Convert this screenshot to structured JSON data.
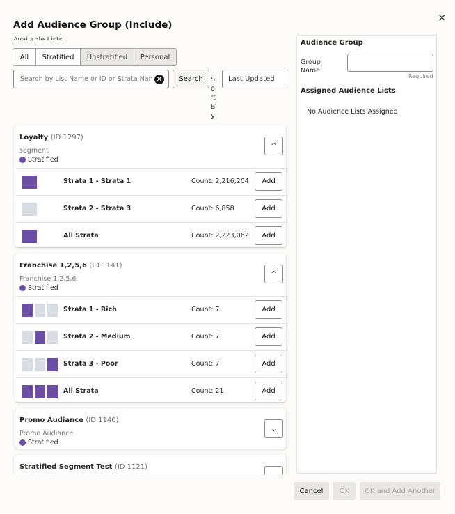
{
  "dialog": {
    "title": "Add Audience Group (Include)",
    "close_glyph": "×"
  },
  "left": {
    "available_label": "Available Lists",
    "tabs": [
      {
        "label": "All",
        "selected": true
      },
      {
        "label": "Stratified",
        "selected": true
      },
      {
        "label": "Unstratified",
        "selected": false
      },
      {
        "label": "Personal",
        "selected": false
      }
    ],
    "search": {
      "placeholder": "Search by List Name or ID or Strata Name",
      "clear_glyph": "✕",
      "button_label": "Search"
    },
    "sort": {
      "label": "Sort By",
      "value": "Last Updated"
    }
  },
  "cards": [
    {
      "name": "Loyalty",
      "id": "(ID 1297)",
      "sub": "segment",
      "type": "Stratified",
      "toggle": "^",
      "rows": [
        {
          "label": "Strata 1 - Strata 1",
          "count": "Count: 2,216,204",
          "add": "Add"
        },
        {
          "label": "Strata 2 - Strata 3",
          "count": "Count: 6,858",
          "add": "Add"
        },
        {
          "label": "All Strata",
          "count": "Count: 2,223,062",
          "add": "Add"
        }
      ]
    },
    {
      "name": "Franchise 1,2,5,6",
      "id": "(ID 1141)",
      "sub": "Franchise 1,2,5,6",
      "type": "Stratified",
      "toggle": "^",
      "rows": [
        {
          "label": "Strata 1 - Rich",
          "count": "Count: 7",
          "add": "Add"
        },
        {
          "label": "Strata 2 - Medium",
          "count": "Count: 7",
          "add": "Add"
        },
        {
          "label": "Strata 3 - Poor",
          "count": "Count: 7",
          "add": "Add"
        },
        {
          "label": "All Strata",
          "count": "Count: 21",
          "add": "Add"
        }
      ]
    },
    {
      "name": "Promo Audiance",
      "id": "(ID 1140)",
      "sub": "Promo Audiance",
      "type": "Stratified",
      "toggle": "⌄"
    },
    {
      "name": "Stratified Segment Test",
      "id": "(ID 1121)",
      "toggle": "⌄"
    }
  ],
  "right": {
    "title": "Audience Group",
    "group_name_label": "Group Name",
    "group_name_value": "",
    "required": "Required",
    "assigned_title": "Assigned Audience Lists",
    "empty_text": "No Audience Lists Assigned"
  },
  "footer": {
    "cancel": "Cancel",
    "ok": "OK",
    "ok_add": "OK and Add Another"
  },
  "colors": {
    "strata_on": "#6c4fa5",
    "strata_off": "#d6dce2"
  }
}
